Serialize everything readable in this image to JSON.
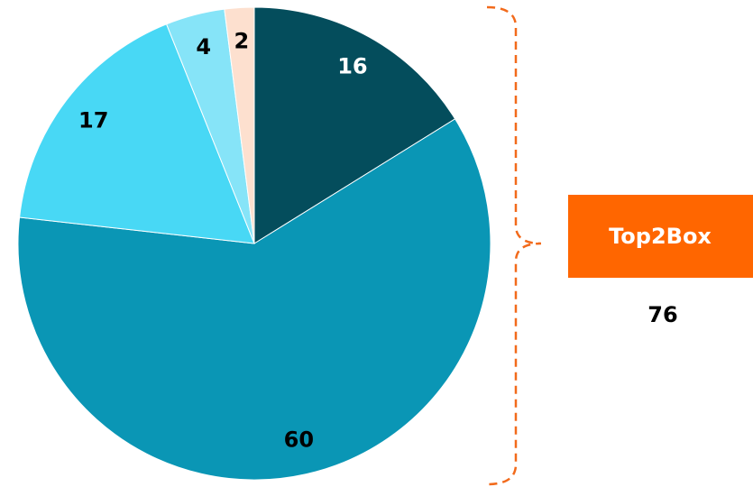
{
  "chart_data": {
    "type": "pie",
    "values": [
      16,
      60,
      17,
      4,
      2
    ],
    "colors": [
      "#044d5c",
      "#0a96b5",
      "#48d8f5",
      "#86e4f8",
      "#fde0cf"
    ],
    "label_colors": [
      "#ffffff",
      "#000000",
      "#000000",
      "#000000",
      "#000000"
    ],
    "annotation": {
      "label": "Top2Box",
      "value": "76"
    }
  }
}
